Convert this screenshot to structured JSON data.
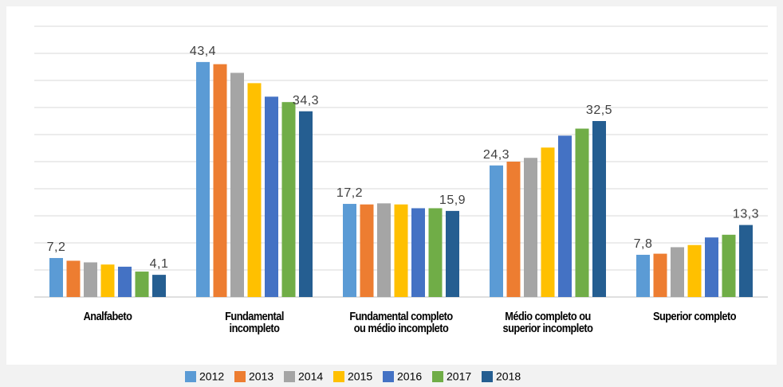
{
  "chart_data": {
    "type": "bar",
    "categories": [
      "Analfabeto",
      "Fundamental\nincompleto",
      "Fundamental completo\nou médio incompleto",
      "Médio completo ou\nsuperior incompleto",
      "Superior completo"
    ],
    "series": [
      {
        "name": "2012",
        "color": "#5b9bd5",
        "values": [
          7.2,
          43.4,
          17.2,
          24.3,
          7.8
        ],
        "value_labels": [
          "7,2",
          "43,4",
          "17,2",
          "24,3",
          "7,8"
        ]
      },
      {
        "name": "2013",
        "color": "#ed7d31",
        "values": [
          6.7,
          43.0,
          17.1,
          25.0,
          8.0
        ]
      },
      {
        "name": "2014",
        "color": "#a5a5a5",
        "values": [
          6.4,
          41.4,
          17.3,
          25.7,
          9.2
        ]
      },
      {
        "name": "2015",
        "color": "#ffc000",
        "values": [
          6.0,
          39.5,
          17.1,
          27.6,
          9.6
        ]
      },
      {
        "name": "2016",
        "color": "#4472c4",
        "values": [
          5.6,
          37.0,
          16.4,
          29.8,
          11.0
        ]
      },
      {
        "name": "2017",
        "color": "#70ad47",
        "values": [
          4.7,
          36.0,
          16.4,
          31.1,
          11.5
        ]
      },
      {
        "name": "2018",
        "color": "#255e91",
        "values": [
          4.1,
          34.3,
          15.9,
          32.5,
          13.3
        ],
        "value_labels": [
          "4,1",
          "34,3",
          "15,9",
          "32,5",
          "13,3"
        ]
      }
    ],
    "ylim": [
      0,
      50
    ],
    "yticks": [
      0,
      5,
      10,
      15,
      20,
      25,
      30,
      35,
      40,
      45,
      50
    ],
    "grid": true,
    "legend": "bottom"
  }
}
